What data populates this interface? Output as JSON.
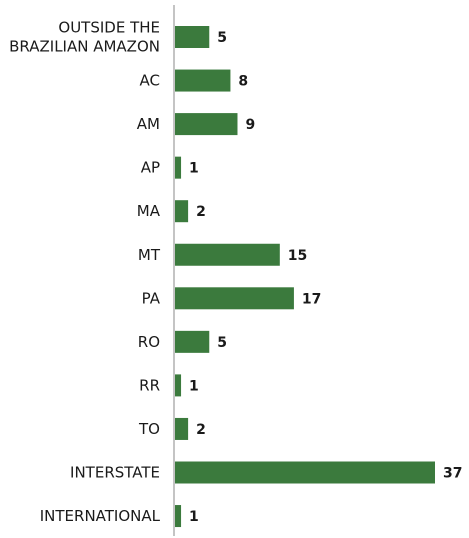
{
  "chart_data": {
    "type": "bar",
    "orientation": "horizontal",
    "categories": [
      "OUTSIDE THE\nBRAZILIAN AMAZON",
      "AC",
      "AM",
      "AP",
      "MA",
      "MT",
      "PA",
      "RO",
      "RR",
      "TO",
      "INTERSTATE",
      "INTERNATIONAL"
    ],
    "values": [
      5,
      8,
      9,
      1,
      2,
      15,
      17,
      5,
      1,
      2,
      37,
      1
    ],
    "color": "#3b7a3d"
  }
}
